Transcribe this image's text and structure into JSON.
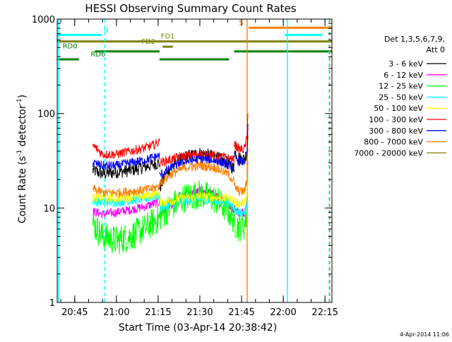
{
  "chart_data": {
    "type": "line",
    "title": "HESSI Observing Summary Count Rates",
    "xlabel": "Start Time (03-Apr-14 20:38:42)",
    "ylabel_main": "Count Rate (s",
    "ylabel_sup1": "-1",
    "ylabel_mid": " detector",
    "ylabel_sup2": "-1",
    "ylabel_end": ")",
    "yscale": "log",
    "ylim": [
      1,
      1000
    ],
    "xlim_minutes": [
      38.7,
      137.5
    ],
    "x_ticks": [
      {
        "label": "20:45",
        "minute": 45
      },
      {
        "label": "21:00",
        "minute": 60
      },
      {
        "label": "21:15",
        "minute": 75
      },
      {
        "label": "21:30",
        "minute": 90
      },
      {
        "label": "21:45",
        "minute": 105
      },
      {
        "label": "22:00",
        "minute": 120
      },
      {
        "label": "22:15",
        "minute": 135
      }
    ],
    "y_ticks": [
      {
        "label": "1",
        "value": 1
      },
      {
        "label": "10",
        "value": 10
      },
      {
        "label": "100",
        "value": 100
      },
      {
        "label": "1000",
        "value": 1000
      }
    ],
    "legend": {
      "header": [
        "Det 1,3,5,6,7,9,",
        "Att 0"
      ],
      "placement": "right"
    },
    "series": [
      {
        "name": "3 - 6 keV",
        "color": "#000000",
        "segments": [
          {
            "x": [
              51.5,
              55,
              60,
              65,
              70,
              73,
              75.5
            ],
            "y": [
              25,
              23,
              24,
              25,
              27,
              29,
              30
            ]
          },
          {
            "x": [
              75.5,
              80,
              85,
              90,
              95,
              100,
              102.3
            ],
            "y": [
              16,
              28,
              35,
              38,
              35,
              30,
              26
            ]
          },
          {
            "x": [
              102.3,
              104,
              106,
              107,
              107.3
            ],
            "y": [
              40,
              34,
              33,
              40,
              60
            ]
          }
        ]
      },
      {
        "name": "6 - 12 keV",
        "color": "#ff00ff",
        "segments": [
          {
            "x": [
              51.5,
              55,
              60,
              65,
              70,
              73,
              75.5
            ],
            "y": [
              9.2,
              8.6,
              9,
              9.6,
              10.3,
              11,
              11.5
            ]
          },
          {
            "x": [
              75.5,
              80,
              85,
              90,
              95,
              100,
              102.3
            ],
            "y": [
              8.5,
              11,
              13.5,
              15,
              14,
              11.5,
              9.5
            ]
          },
          {
            "x": [
              102.3,
              104,
              106,
              107,
              107.3
            ],
            "y": [
              10,
              9,
              9,
              12,
              30
            ]
          }
        ]
      },
      {
        "name": "12 - 25 keV",
        "color": "#00ff00",
        "segments": [
          {
            "x": [
              51.5,
              55,
              60,
              65,
              70,
              73,
              75.5
            ],
            "y": [
              6.8,
              5,
              4.5,
              5,
              6,
              7,
              7.8
            ]
          },
          {
            "x": [
              75.5,
              80,
              85,
              90,
              95,
              100,
              102.3
            ],
            "y": [
              8,
              10.5,
              13,
              14,
              12.5,
              9.5,
              7.5
            ]
          },
          {
            "x": [
              102.3,
              104,
              106,
              107,
              107.3
            ],
            "y": [
              7,
              6.3,
              6.5,
              9,
              25
            ]
          }
        ]
      },
      {
        "name": "25 - 50 keV",
        "color": "#00ffff",
        "segments": [
          {
            "x": [
              51.5,
              55,
              60,
              65,
              70,
              73,
              75.5
            ],
            "y": [
              11.8,
              11.5,
              11.6,
              12,
              12.5,
              13,
              13.5
            ]
          },
          {
            "x": [
              75.5,
              80,
              85,
              90,
              95,
              100,
              102.3
            ],
            "y": [
              10,
              11,
              12,
              12.5,
              12,
              11.5,
              10.5
            ]
          },
          {
            "x": [
              102.3,
              104,
              106,
              107,
              107.3
            ],
            "y": [
              9.5,
              9,
              9,
              11,
              25
            ]
          }
        ]
      },
      {
        "name": "50 - 100 keV",
        "color": "#ffff00",
        "segments": [
          {
            "x": [
              51.5,
              55,
              60,
              65,
              70,
              73,
              75.5
            ],
            "y": [
              13,
              12.6,
              12.7,
              13,
              13.4,
              13.8,
              14
            ]
          },
          {
            "x": [
              75.5,
              80,
              85,
              90,
              95,
              100,
              102.3
            ],
            "y": [
              11.5,
              12,
              12.8,
              13.2,
              13,
              12.6,
              12
            ]
          },
          {
            "x": [
              102.3,
              104,
              106,
              107,
              107.3
            ],
            "y": [
              11.5,
              11.2,
              11.3,
              13,
              28
            ]
          }
        ]
      },
      {
        "name": "100 - 300 keV",
        "color": "#ff0000",
        "segments": [
          {
            "x": [
              51.5,
              55,
              60,
              65,
              70,
              73,
              75.5
            ],
            "y": [
              46,
              37,
              37,
              40,
              43,
              46,
              50
            ]
          },
          {
            "x": [
              75.5,
              80,
              85,
              90,
              95,
              100,
              102.3
            ],
            "y": [
              30,
              33,
              36,
              37,
              36,
              34,
              32
            ]
          },
          {
            "x": [
              102.3,
              104,
              106,
              107,
              107.3
            ],
            "y": [
              48,
              42,
              42,
              55,
              110
            ]
          }
        ]
      },
      {
        "name": "300 - 800 keV",
        "color": "#0000ff",
        "segments": [
          {
            "x": [
              51.5,
              55,
              60,
              65,
              70,
              73,
              75.5
            ],
            "y": [
              30,
              28,
              28,
              30,
              32,
              34,
              36
            ]
          },
          {
            "x": [
              75.5,
              80,
              85,
              90,
              95,
              100,
              102.3
            ],
            "y": [
              22,
              27,
              31,
              33,
              32,
              29,
              26
            ]
          },
          {
            "x": [
              102.3,
              104,
              106,
              107,
              107.3
            ],
            "y": [
              36,
              31,
              31,
              38,
              70
            ]
          }
        ]
      },
      {
        "name": "800 - 7000 keV",
        "color": "#ff8000",
        "segments": [
          {
            "x": [
              51.5,
              55,
              60,
              65,
              70,
              73,
              75.5
            ],
            "y": [
              16,
              14.5,
              14.5,
              15,
              15.5,
              16,
              17
            ]
          },
          {
            "x": [
              75.5,
              80,
              85,
              90,
              95,
              100,
              102.3
            ],
            "y": [
              18,
              23,
              27,
              28,
              27,
              23,
              19
            ]
          },
          {
            "x": [
              102.3,
              104,
              106,
              107,
              107.3
            ],
            "y": [
              17,
              15,
              15,
              19,
              45
            ]
          }
        ]
      },
      {
        "name": "7000 - 20000 keV",
        "color": "#808000",
        "segments": []
      }
    ],
    "state_bars": [
      {
        "label": "N",
        "color": "#00ffff",
        "y": 680,
        "ranges": [
          [
            38.7,
            54.5
          ],
          [
            120.5,
            134
          ]
        ],
        "label_minute": 56.3
      },
      {
        "label": "S",
        "color": "#ff8000",
        "y": 810,
        "ranges": [
          [
            107.5,
            137.5
          ]
        ],
        "label_minute": 104.8
      },
      {
        "label": "FD1",
        "color": "#808000",
        "y": 580,
        "ranges": [
          [
            38.7,
            137.5
          ]
        ],
        "label_minute": 78.5
      },
      {
        "label": "FD2",
        "color": "#808000",
        "y": 510,
        "ranges": [
          [
            76.6,
            80.3
          ]
        ],
        "label_minute": 71.5
      },
      {
        "label": "RD0",
        "color": "#008000",
        "y": 455,
        "ranges": [
          [
            52.2,
            75.5
          ],
          [
            102.3,
            137.5
          ]
        ],
        "label_minute": 43.3
      },
      {
        "label": "RD6",
        "color": "#008000",
        "y": 375,
        "ranges": [
          [
            38.7,
            46.5
          ],
          [
            75.5,
            100.5
          ]
        ],
        "label_minute": 53.4
      }
    ],
    "vertical_lines": [
      {
        "minute": 39.2,
        "color": "#00ffff",
        "style": "solid"
      },
      {
        "minute": 55.8,
        "color": "#00ffff",
        "style": "dashed"
      },
      {
        "minute": 107.0,
        "color": "#ff8000",
        "style": "solid"
      },
      {
        "minute": 121.5,
        "color": "#00ffff",
        "style": "solid"
      },
      {
        "minute": 136.5,
        "color": "#00ffff",
        "style": "dashed"
      },
      {
        "minute": 136.7,
        "color": "#ff8000",
        "style": "dashed"
      }
    ],
    "footer_date": "4-Apr-2014 11:06",
    "grid": false
  }
}
